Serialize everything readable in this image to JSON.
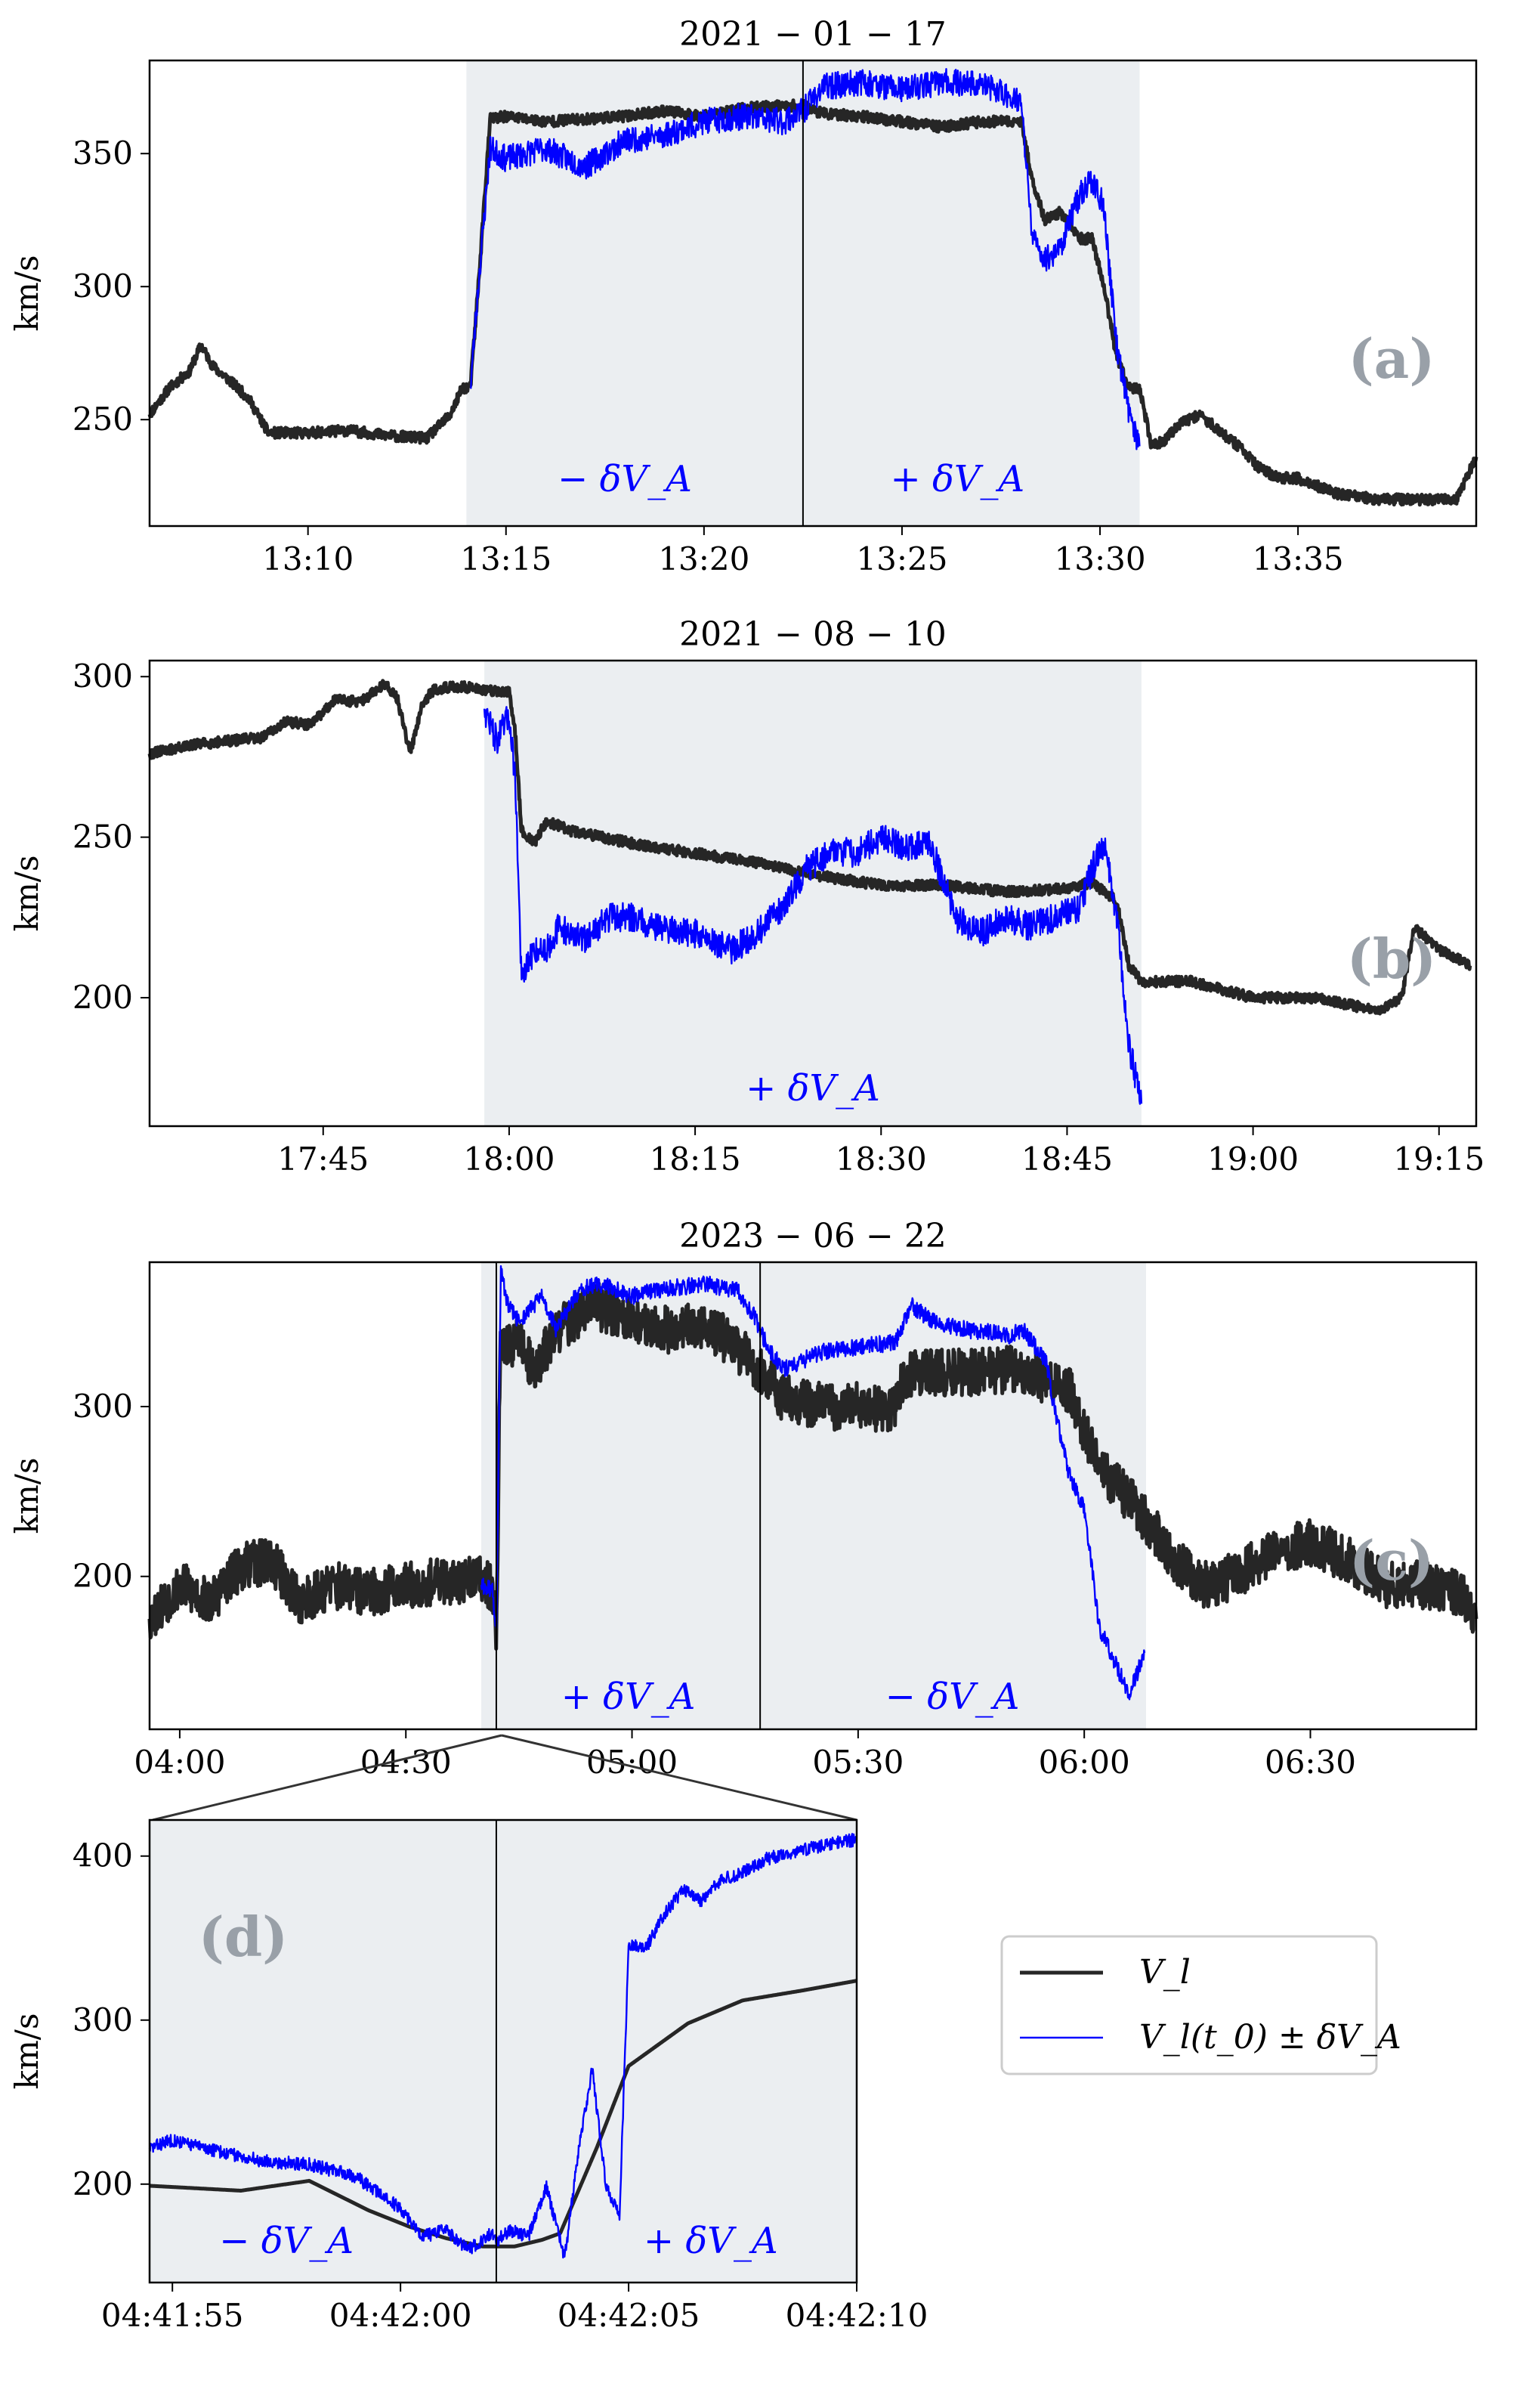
{
  "chart_data": [
    {
      "panel": "a",
      "type": "line",
      "title": "2021 − 01 − 17",
      "ylabel": "km/s",
      "panel_letter": "(a)",
      "xlim": [
        6,
        39.5
      ],
      "ylim": [
        210,
        385
      ],
      "xticks": [
        {
          "v": 10,
          "label": "13:10"
        },
        {
          "v": 15,
          "label": "13:15"
        },
        {
          "v": 20,
          "label": "13:20"
        },
        {
          "v": 25,
          "label": "13:25"
        },
        {
          "v": 30,
          "label": "13:30"
        },
        {
          "v": 35,
          "label": "13:35"
        }
      ],
      "yticks": [
        {
          "v": 250,
          "label": "250"
        },
        {
          "v": 300,
          "label": "300"
        },
        {
          "v": 350,
          "label": "350"
        }
      ],
      "shade": [
        14.0,
        31.0
      ],
      "vlines": [
        22.5
      ],
      "region_labels": [
        {
          "x": 18.0,
          "y": 223,
          "text": "− δV_A"
        },
        {
          "x": 26.4,
          "y": 223,
          "text": "+ δV_A"
        }
      ],
      "series": [
        {
          "name": "V_l",
          "color": "#262626",
          "noise": 2.0,
          "seed": 11,
          "x": [
            6,
            6.5,
            7,
            7.3,
            7.6,
            8,
            8.5,
            9,
            10,
            11,
            12,
            13,
            13.6,
            13.9,
            14.1,
            14.3,
            14.6,
            15,
            16,
            17,
            18,
            19,
            20,
            21,
            22,
            22.5,
            23,
            24,
            25,
            26,
            27,
            28,
            28.3,
            28.6,
            29,
            29.5,
            29.8,
            30.1,
            30.4,
            30.7,
            31,
            31.3,
            31.6,
            32,
            32.5,
            33,
            33.5,
            34,
            34.5,
            35,
            36,
            37,
            38,
            39,
            39.5
          ],
          "y": [
            252,
            262,
            268,
            278,
            270,
            265,
            258,
            245,
            245,
            246,
            244,
            243,
            252,
            262,
            262,
            300,
            363,
            364,
            362,
            363,
            364,
            366,
            364,
            367,
            368,
            368,
            365,
            364,
            362,
            360,
            362,
            362,
            340,
            325,
            328,
            318,
            318,
            300,
            275,
            262,
            262,
            240,
            242,
            248,
            252,
            246,
            240,
            232,
            228,
            228,
            222,
            220,
            220,
            220,
            236
          ]
        },
        {
          "name": "V_l(t_0) ± δV_A",
          "color": "#0000ff",
          "noise": 5.0,
          "seed": 23,
          "x": [
            14.1,
            14.3,
            14.6,
            15,
            16,
            17,
            18,
            19,
            20,
            21,
            22,
            22.5,
            23,
            24,
            25,
            26,
            27,
            28,
            28.3,
            28.6,
            29,
            29.5,
            29.8,
            30.1,
            30.4,
            30.7,
            31
          ],
          "y": [
            262,
            300,
            352,
            348,
            352,
            345,
            355,
            357,
            362,
            364,
            362,
            366,
            375,
            377,
            374,
            377,
            376,
            370,
            318,
            310,
            315,
            335,
            340,
            330,
            280,
            255,
            240
          ]
        }
      ]
    },
    {
      "panel": "b",
      "type": "line",
      "title": "2021 − 08 − 10",
      "ylabel": "km/s",
      "panel_letter": "(b)",
      "xlim": [
        31,
        138
      ],
      "ylim": [
        160,
        305
      ],
      "xticks": [
        {
          "v": 45,
          "label": "17:45"
        },
        {
          "v": 60,
          "label": "18:00"
        },
        {
          "v": 75,
          "label": "18:15"
        },
        {
          "v": 90,
          "label": "18:30"
        },
        {
          "v": 105,
          "label": "18:45"
        },
        {
          "v": 120,
          "label": "19:00"
        },
        {
          "v": 135,
          "label": "19:15"
        }
      ],
      "yticks": [
        {
          "v": 200,
          "label": "200"
        },
        {
          "v": 250,
          "label": "250"
        },
        {
          "v": 300,
          "label": "300"
        }
      ],
      "shade": [
        58.0,
        111.0
      ],
      "vlines": [],
      "region_labels": [
        {
          "x": 84.5,
          "y": 168,
          "text": "+ δV_A"
        }
      ],
      "series": [
        {
          "name": "V_l",
          "color": "#262626",
          "noise": 1.6,
          "seed": 31,
          "x": [
            31,
            35,
            40,
            42,
            44,
            46,
            48,
            50,
            51,
            52,
            53,
            54,
            56,
            58,
            60,
            60.5,
            61,
            62,
            63,
            65,
            70,
            75,
            80,
            85,
            90,
            95,
            100,
            105,
            107,
            108,
            109,
            110,
            111,
            115,
            120,
            125,
            130,
            132,
            133,
            135,
            137.5
          ],
          "y": [
            276,
            279,
            281,
            286,
            285,
            293,
            292,
            298,
            293,
            276,
            292,
            296,
            297,
            296,
            295,
            282,
            252,
            248,
            255,
            252,
            248,
            245,
            242,
            238,
            235,
            235,
            233,
            234,
            236,
            233,
            230,
            210,
            205,
            205,
            200,
            200,
            196,
            200,
            222,
            215,
            210
          ]
        },
        {
          "name": "V_l(t_0) ± δV_A",
          "color": "#0000ff",
          "noise": 4.5,
          "seed": 47,
          "x": [
            58,
            59,
            60,
            60.5,
            61,
            62,
            63,
            64,
            66,
            68,
            70,
            72,
            75,
            78,
            80,
            82,
            84,
            86,
            88,
            90,
            92,
            94,
            96,
            98,
            100,
            102,
            104,
            106,
            107,
            108,
            109,
            110,
            111
          ],
          "y": [
            290,
            280,
            288,
            268,
            205,
            215,
            215,
            222,
            218,
            225,
            225,
            222,
            220,
            215,
            220,
            228,
            240,
            246,
            245,
            250,
            247,
            248,
            225,
            220,
            225,
            222,
            225,
            228,
            240,
            248,
            225,
            185,
            167
          ]
        }
      ]
    },
    {
      "panel": "c",
      "type": "line",
      "title": "2023 − 06 − 22",
      "ylabel": "km/s",
      "panel_letter": "(c)",
      "xlim": [
        236,
        412
      ],
      "ylim": [
        110,
        385
      ],
      "xticks": [
        {
          "v": 240,
          "label": "04:00"
        },
        {
          "v": 270,
          "label": "04:30"
        },
        {
          "v": 300,
          "label": "05:00"
        },
        {
          "v": 330,
          "label": "05:30"
        },
        {
          "v": 360,
          "label": "06:00"
        },
        {
          "v": 390,
          "label": "06:30"
        }
      ],
      "yticks": [
        {
          "v": 200,
          "label": "200"
        },
        {
          "v": 300,
          "label": "300"
        }
      ],
      "shade": [
        280.0,
        368.2
      ],
      "vlines": [
        282.0,
        317.0
      ],
      "region_labels": [
        {
          "x": 299.5,
          "y": 122,
          "text": "+ δV_A"
        },
        {
          "x": 342.5,
          "y": 122,
          "text": "− δV_A"
        }
      ],
      "series": [
        {
          "name": "V_l",
          "color": "#262626",
          "noise": 14.0,
          "seed": 53,
          "x": [
            236,
            240,
            244,
            248,
            252,
            256,
            260,
            265,
            270,
            275,
            280,
            281.6,
            282,
            282.5,
            283,
            285,
            287,
            290,
            295,
            300,
            305,
            310,
            315,
            317,
            320,
            325,
            330,
            335,
            336,
            338,
            345,
            350,
            355,
            358,
            360,
            362,
            365,
            368,
            372,
            376,
            380,
            385,
            390,
            395,
            400,
            405,
            410,
            412
          ],
          "y": [
            175,
            195,
            185,
            205,
            210,
            185,
            195,
            190,
            195,
            197,
            198,
            192,
            165,
            330,
            335,
            340,
            320,
            345,
            360,
            350,
            345,
            348,
            330,
            322,
            305,
            300,
            300,
            298,
            318,
            320,
            320,
            322,
            315,
            310,
            285,
            265,
            250,
            235,
            210,
            195,
            200,
            215,
            220,
            210,
            195,
            195,
            190,
            175
          ]
        },
        {
          "name": "V_l(t_0) ± δV_A",
          "color": "#0000ff",
          "noise": 5.0,
          "seed": 61,
          "x": [
            280,
            281.5,
            282,
            282.6,
            283.5,
            285,
            288,
            290,
            292,
            294,
            296,
            300,
            305,
            310,
            314,
            316,
            318,
            320,
            325,
            330,
            335,
            337,
            340,
            345,
            350,
            352,
            355,
            356,
            358,
            360,
            362,
            364,
            366,
            368
          ],
          "y": [
            195,
            192,
            165,
            380,
            360,
            350,
            365,
            345,
            362,
            370,
            372,
            365,
            370,
            372,
            368,
            355,
            335,
            322,
            332,
            335,
            338,
            360,
            350,
            345,
            342,
            345,
            325,
            300,
            260,
            240,
            170,
            150,
            130,
            155
          ]
        }
      ]
    },
    {
      "panel": "d",
      "type": "line",
      "ylabel": "km/s",
      "panel_letter": "(d)",
      "xlim": [
        54.5,
        70
      ],
      "ylim": [
        140,
        422
      ],
      "xticks": [
        {
          "v": 55,
          "label": "04:41:55"
        },
        {
          "v": 60,
          "label": "04:42:00"
        },
        {
          "v": 65,
          "label": "04:42:05"
        },
        {
          "v": 70,
          "label": "04:42:10"
        }
      ],
      "yticks": [
        {
          "v": 200,
          "label": "200"
        },
        {
          "v": 300,
          "label": "300"
        },
        {
          "v": 400,
          "label": "400"
        }
      ],
      "shade": [
        54.5,
        70.0
      ],
      "vlines": [
        62.1
      ],
      "region_labels": [
        {
          "x": 57.5,
          "y": 158,
          "text": "− δV_A"
        },
        {
          "x": 66.8,
          "y": 158,
          "text": "+ δV_A"
        }
      ],
      "series": [
        {
          "name": "V_l",
          "color": "#262626",
          "noise": 0.0,
          "seed": 71,
          "x": [
            54.5,
            56.5,
            58.0,
            59.3,
            60.2,
            61.0,
            61.8,
            62.5,
            63.1,
            63.5,
            64.3,
            65.0,
            66.3,
            67.5,
            68.8,
            70.0
          ],
          "y": [
            199,
            196,
            202,
            184,
            174,
            167,
            162,
            162,
            166,
            170,
            222,
            272,
            298,
            312,
            318,
            324
          ]
        },
        {
          "name": "V_l(t_0) ± δV_A",
          "color": "#0000ff",
          "noise": 4.0,
          "seed": 83,
          "x": [
            54.5,
            55,
            56,
            57,
            58,
            59,
            60,
            60.5,
            61,
            61.5,
            62,
            62.1,
            62.4,
            62.8,
            63.2,
            63.6,
            63.9,
            64.2,
            64.5,
            64.8,
            65.0,
            65.4,
            65.8,
            66.2,
            66.6,
            67,
            67.5,
            68,
            68.5,
            69,
            69.5,
            70
          ],
          "y": [
            222,
            227,
            220,
            214,
            212,
            205,
            185,
            168,
            172,
            160,
            170,
            165,
            172,
            168,
            198,
            155,
            220,
            270,
            200,
            180,
            345,
            345,
            365,
            380,
            372,
            385,
            390,
            398,
            402,
            405,
            408,
            410
          ]
        }
      ]
    }
  ],
  "legend": {
    "entries": [
      {
        "label": "V_l",
        "color": "#262626"
      },
      {
        "label": "V_l(t_0) ± δV_A",
        "color": "#0000ff"
      }
    ]
  },
  "colors": {
    "shade": "#ebeef1",
    "black_line": "#262626",
    "blue_line": "#0000ff",
    "letter": "#99a0a8"
  }
}
